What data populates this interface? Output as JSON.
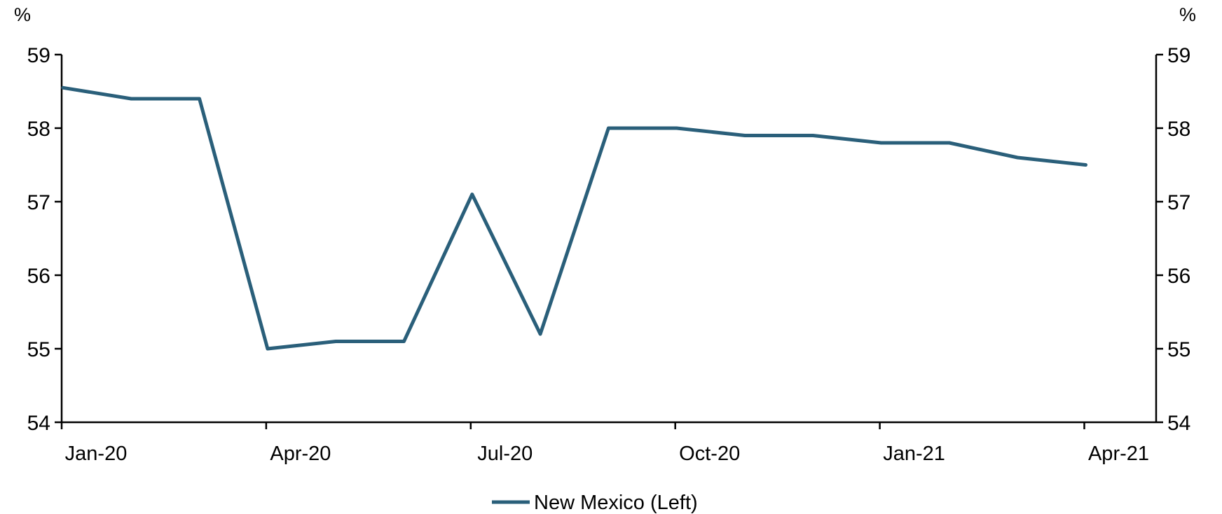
{
  "chart_data": {
    "type": "line",
    "x": [
      "Jan-20",
      "Feb-20",
      "Mar-20",
      "Apr-20",
      "May-20",
      "Jun-20",
      "Jul-20",
      "Aug-20",
      "Sep-20",
      "Oct-20",
      "Nov-20",
      "Dec-20",
      "Jan-21",
      "Feb-21",
      "Mar-21",
      "Apr-21"
    ],
    "x_tick_labels": [
      "Jan-20",
      "Apr-20",
      "Jul-20",
      "Oct-20",
      "Jan-21",
      "Apr-21"
    ],
    "series": [
      {
        "name": "New Mexico (Left)",
        "color": "#2a5f7a",
        "values": [
          58.55,
          58.4,
          58.4,
          55.0,
          55.1,
          55.1,
          57.1,
          55.2,
          58.0,
          58.0,
          57.9,
          57.9,
          57.8,
          57.8,
          57.6,
          57.5
        ]
      }
    ],
    "ylim": [
      54,
      59
    ],
    "y_ticks": [
      "54",
      "55",
      "56",
      "57",
      "58",
      "59"
    ],
    "y2lim": [
      54,
      59
    ],
    "y2_ticks": [
      "54",
      "55",
      "56",
      "57",
      "58",
      "59"
    ],
    "ylabel": "%",
    "y2label": "%",
    "grid": false,
    "legend_position": "bottom-center"
  }
}
